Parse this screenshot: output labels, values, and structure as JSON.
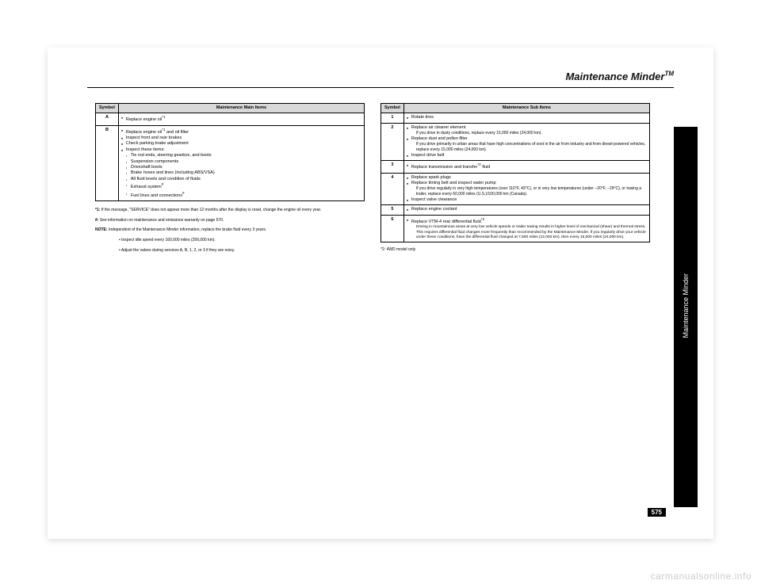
{
  "page": {
    "title": "Maintenance Minder",
    "tm": "TM",
    "number": "575",
    "sidetab": "Maintenance Minder",
    "watermark": "carmanualsonline.info"
  },
  "leftTable": {
    "headers": [
      "Symbol",
      "Maintenance Main Items"
    ],
    "rows": [
      {
        "sym": "A",
        "items": [
          {
            "t": "Replace engine oil",
            "sup": "*1"
          }
        ]
      },
      {
        "sym": "B",
        "items": [
          {
            "t": "Replace engine oil",
            "sup": "*1",
            "tail": " and oil filter"
          },
          {
            "t": "Inspect front and rear brakes"
          },
          {
            "t": "Check parking brake adjustment"
          },
          {
            "t": "Inspect these items:"
          },
          {
            "t": "Tie rod ends, steering gearbox, and boots",
            "sub": true
          },
          {
            "t": "Suspension components",
            "sub": true
          },
          {
            "t": "Driveshaft boots",
            "sub": true
          },
          {
            "t": "Brake hoses and lines (including ABS/VSA)",
            "sub": true
          },
          {
            "t": "All fluid levels and condition of fluids",
            "sub": true
          },
          {
            "t": "Exhaust system",
            "sup": "#",
            "sub": true
          },
          {
            "t": "Fuel lines and connections",
            "sup": "#",
            "sub": true
          }
        ]
      }
    ]
  },
  "leftFootnotes": [
    {
      "label": "*1:",
      "text": "If the message, \"SERVICE\" does not appear more than 12 months after the display is reset, change the engine oil every year."
    },
    {
      "label": "#:",
      "text": "See information on maintenance and emissions warranty on page 570."
    },
    {
      "label": "NOTE:",
      "text": "Independent of the Maintenance Minder information, replace the brake fluid every 3 years.",
      "cls": "note"
    },
    {
      "label": "",
      "text": "Inspect idle speed every 160,000 miles (256,000 km).",
      "cls": "noteitem"
    },
    {
      "label": "",
      "text": "Adjust the valves during services A, B, 1, 2, or 3 if they are noisy.",
      "cls": "noteitem"
    }
  ],
  "rightTable": {
    "headers": [
      "Symbol",
      "Maintenance Sub Items"
    ],
    "rows": [
      {
        "sym": "1",
        "items": [
          {
            "t": "Rotate tires"
          }
        ]
      },
      {
        "sym": "2",
        "items": [
          {
            "t": "Replace air cleaner element"
          },
          {
            "t": "If you drive in dusty conditions, replace every 15,000 miles (24,000 km).",
            "note": true
          },
          {
            "t": "Replace dust and pollen filter"
          },
          {
            "t": "If you drive primarily in urban areas that have high concentrations of soot in the air from industry and from diesel-powered vehicles, replace every 15,000 miles (24,000 km).",
            "note": true
          },
          {
            "t": "Inspect drive belt"
          }
        ]
      },
      {
        "sym": "3",
        "items": [
          {
            "t": "Replace transmission and transfer",
            "sup": "*2",
            "tail": " fluid"
          }
        ]
      },
      {
        "sym": "4",
        "items": [
          {
            "t": "Replace spark plugs"
          },
          {
            "t": "Replace timing belt and inspect water pump"
          },
          {
            "t": "If you drive regularly in very high temperatures (over 110°F, 43°C), or in very low temperatures (under −20°F, −29°C), or towing a trailer, replace every 60,000 miles (U.S.)/100,000 km (Canada).",
            "note": true
          },
          {
            "t": "Inspect valve clearance"
          }
        ]
      },
      {
        "sym": "5",
        "items": [
          {
            "t": "Replace engine coolant"
          }
        ]
      },
      {
        "sym": "6",
        "items": [
          {
            "t": "Replace VTM-4 rear differential fluid",
            "sup": "*2"
          },
          {
            "t": "Driving in mountainous areas at very low vehicle speeds or trailer towing results in higher level of mechanical (shear) and thermal stress. This requires differential fluid changes more frequently than recommended by the Maintenance Minder. If you regularly drive your vehicle under these conditions, have the differential fluid changed at 7,500 miles (12,000 km), then every 15,000 miles (24,000 km).",
            "sixnote": true
          }
        ]
      }
    ]
  },
  "rightFootnote": "*2: 4WD model only"
}
